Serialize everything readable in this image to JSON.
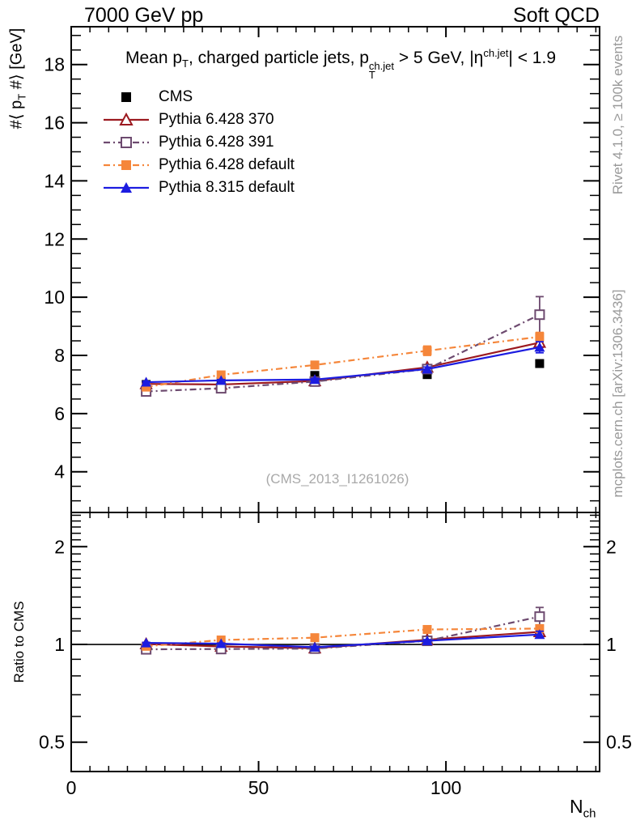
{
  "header": {
    "left": "7000 GeV pp",
    "right": "Soft QCD"
  },
  "watermark": "(CMS_2013_I1261026)",
  "side_notes": {
    "top_right": "Rivet 4.1.0, ≥ 100k events",
    "bottom_right": "mcplots.cern.ch [arXiv:1306.3436]"
  },
  "title": {
    "t1": "Mean p",
    "t1_sub": "T",
    "t2": ", charged particle jets, p",
    "t2_sup": "ch.jet",
    "t2_sub": "T",
    "t3": " > 5 GeV,  |η",
    "t3_sup": "ch.jet",
    "t4": "| < 1.9"
  },
  "axes": {
    "y_top_label": {
      "l1": "#⟨ p",
      "l1_sub": "T",
      "l2": " #⟩ [GeV]"
    },
    "y_bottom_label": "Ratio to CMS",
    "x_label": {
      "base": "N",
      "sub": "ch"
    }
  },
  "chart_data": {
    "type": "line",
    "xlabel": "N_ch",
    "ylabel_top": "#< p_T #> [GeV]",
    "ylabel_bottom": "Ratio to CMS",
    "x": [
      20,
      40,
      65,
      95,
      125
    ],
    "xlim": [
      0,
      141
    ],
    "x_major_ticks": [
      0,
      50,
      100
    ],
    "x_minor_step": 5,
    "top_panel": {
      "scale": "linear",
      "ylim": [
        2.6,
        19.3
      ],
      "y_major_ticks": [
        4,
        6,
        8,
        10,
        12,
        14,
        16,
        18
      ],
      "y_minor_step": 0.5
    },
    "ratio_panel": {
      "scale": "log",
      "ylim": [
        0.406,
        2.55
      ],
      "y_major_ticks": [
        0.5,
        1,
        2
      ],
      "y_minor_ticks": [
        0.6,
        0.7,
        0.8,
        0.9,
        1.1,
        1.2,
        1.3,
        1.4,
        1.5,
        1.6,
        1.7,
        1.8,
        1.9,
        2.1,
        2.2,
        2.3,
        2.4,
        2.5
      ],
      "reference_line": 1
    },
    "series": [
      {
        "name": "CMS",
        "color": "#000000",
        "marker": "square-filled",
        "line_style": "none",
        "is_reference": true,
        "values": [
          7.0,
          7.1,
          7.31,
          7.34,
          7.72
        ],
        "yerr": [
          0,
          0,
          0,
          0,
          0
        ],
        "ratio": [
          1,
          1,
          1,
          1,
          1
        ],
        "ratio_err": [
          0,
          0,
          0,
          0,
          0
        ]
      },
      {
        "name": "Pythia 6.428 370",
        "color": "#9c1a20",
        "marker": "triangle-open",
        "line_style": "solid",
        "is_reference": false,
        "values": [
          7.02,
          7.0,
          7.12,
          7.59,
          8.44
        ],
        "yerr": [
          0.03,
          0.03,
          0.04,
          0.08,
          0.16
        ],
        "ratio": [
          1.003,
          0.986,
          0.974,
          1.034,
          1.093
        ],
        "ratio_err": [
          0.004,
          0.004,
          0.006,
          0.011,
          0.021
        ]
      },
      {
        "name": "Pythia 6.428 391",
        "color": "#6d4a6f",
        "marker": "square-open",
        "line_style": "dashdot",
        "is_reference": false,
        "values": [
          6.76,
          6.87,
          7.1,
          7.53,
          9.4
        ],
        "yerr": [
          0.03,
          0.03,
          0.04,
          0.08,
          0.62
        ],
        "ratio": [
          0.966,
          0.968,
          0.971,
          1.026,
          1.218
        ],
        "ratio_err": [
          0.004,
          0.004,
          0.006,
          0.011,
          0.082
        ]
      },
      {
        "name": "Pythia 6.428 default",
        "color": "#f5863a",
        "marker": "square-filled",
        "line_style": "dashdot",
        "is_reference": false,
        "values": [
          6.91,
          7.33,
          7.67,
          8.16,
          8.64
        ],
        "yerr": [
          0.07,
          0.07,
          0.09,
          0.16,
          0.15
        ],
        "ratio": [
          0.987,
          1.032,
          1.049,
          1.112,
          1.119
        ],
        "ratio_err": [
          0.01,
          0.01,
          0.012,
          0.022,
          0.019
        ]
      },
      {
        "name": "Pythia 8.315 default",
        "color": "#1c1ce0",
        "marker": "triangle-filled",
        "line_style": "solid",
        "is_reference": false,
        "values": [
          7.08,
          7.14,
          7.17,
          7.53,
          8.28
        ],
        "yerr": [
          0.03,
          0.03,
          0.04,
          0.07,
          0.19
        ],
        "ratio": [
          1.011,
          1.006,
          0.981,
          1.026,
          1.073
        ],
        "ratio_err": [
          0.004,
          0.004,
          0.006,
          0.009,
          0.025
        ]
      }
    ]
  }
}
